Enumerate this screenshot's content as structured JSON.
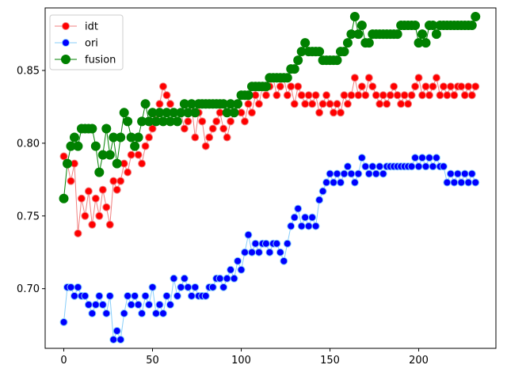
{
  "chart_data": {
    "type": "line",
    "title": "",
    "xlabel": "",
    "ylabel": "",
    "xlim": [
      -10.5,
      243.5
    ],
    "ylim": [
      0.659,
      0.893
    ],
    "xticks": [
      0,
      50,
      100,
      150,
      200
    ],
    "yticks": [
      0.7,
      0.75,
      0.8,
      0.85
    ],
    "xtick_labels": [
      "0",
      "50",
      "100",
      "150",
      "200"
    ],
    "ytick_labels": [
      "0.70",
      "0.75",
      "0.80",
      "0.85"
    ],
    "legend_position": "top-left",
    "grid": false,
    "series": [
      {
        "name": "idt",
        "color": "#ff0000",
        "line_color": "#f08080",
        "edge_color": "#f08080",
        "marker_size": 9,
        "x": [
          0,
          2,
          4,
          6,
          8,
          10,
          12,
          14,
          16,
          18,
          20,
          22,
          24,
          26,
          28,
          30,
          32,
          34,
          36,
          38,
          40,
          42,
          44,
          46,
          48,
          50,
          52,
          54,
          56,
          58,
          60,
          62,
          64,
          66,
          68,
          70,
          72,
          74,
          76,
          78,
          80,
          82,
          84,
          86,
          88,
          90,
          92,
          94,
          96,
          98,
          100,
          102,
          104,
          106,
          108,
          110,
          112,
          114,
          116,
          118,
          120,
          122,
          124,
          126,
          128,
          130,
          132,
          134,
          136,
          138,
          140,
          142,
          144,
          146,
          148,
          150,
          152,
          154,
          156,
          158,
          160,
          162,
          164,
          166,
          168,
          170,
          172,
          174,
          176,
          178,
          180,
          182,
          184,
          186,
          188,
          190,
          192,
          194,
          196,
          198,
          200,
          202,
          204,
          206,
          208,
          210,
          212,
          214,
          216,
          218,
          220,
          222,
          224,
          226,
          228,
          230,
          232
        ],
        "y": [
          0.791,
          0.786,
          0.774,
          0.786,
          0.738,
          0.762,
          0.75,
          0.767,
          0.744,
          0.762,
          0.75,
          0.768,
          0.756,
          0.744,
          0.774,
          0.768,
          0.774,
          0.786,
          0.78,
          0.792,
          0.798,
          0.792,
          0.786,
          0.798,
          0.804,
          0.81,
          0.816,
          0.827,
          0.839,
          0.833,
          0.827,
          0.821,
          0.815,
          0.821,
          0.81,
          0.815,
          0.827,
          0.804,
          0.821,
          0.815,
          0.798,
          0.804,
          0.81,
          0.815,
          0.821,
          0.81,
          0.804,
          0.815,
          0.821,
          0.827,
          0.821,
          0.815,
          0.827,
          0.821,
          0.833,
          0.827,
          0.839,
          0.833,
          0.839,
          0.845,
          0.833,
          0.839,
          0.845,
          0.833,
          0.839,
          0.827,
          0.839,
          0.833,
          0.827,
          0.833,
          0.827,
          0.833,
          0.821,
          0.827,
          0.833,
          0.827,
          0.821,
          0.827,
          0.821,
          0.833,
          0.827,
          0.833,
          0.845,
          0.833,
          0.839,
          0.833,
          0.845,
          0.839,
          0.833,
          0.827,
          0.833,
          0.827,
          0.833,
          0.839,
          0.833,
          0.827,
          0.833,
          0.827,
          0.833,
          0.839,
          0.845,
          0.833,
          0.839,
          0.833,
          0.839,
          0.845,
          0.833,
          0.839,
          0.833,
          0.839,
          0.833,
          0.839,
          0.839,
          0.833,
          0.839,
          0.833,
          0.839
        ]
      },
      {
        "name": "ori",
        "color": "#0000ff",
        "line_color": "#87cefa",
        "edge_color": "#87cefa",
        "marker_size": 9,
        "x": [
          0,
          2,
          4,
          6,
          8,
          10,
          12,
          14,
          16,
          18,
          20,
          22,
          24,
          26,
          28,
          30,
          32,
          34,
          36,
          38,
          40,
          42,
          44,
          46,
          48,
          50,
          52,
          54,
          56,
          58,
          60,
          62,
          64,
          66,
          68,
          70,
          72,
          74,
          76,
          78,
          80,
          82,
          84,
          86,
          88,
          90,
          92,
          94,
          96,
          98,
          100,
          102,
          104,
          106,
          108,
          110,
          112,
          114,
          116,
          118,
          120,
          122,
          124,
          126,
          128,
          130,
          132,
          134,
          136,
          138,
          140,
          142,
          144,
          146,
          148,
          150,
          152,
          154,
          156,
          158,
          160,
          162,
          164,
          166,
          168,
          170,
          172,
          174,
          176,
          178,
          180,
          182,
          184,
          186,
          188,
          190,
          192,
          194,
          196,
          198,
          200,
          202,
          204,
          206,
          208,
          210,
          212,
          214,
          216,
          218,
          220,
          222,
          224,
          226,
          228,
          230,
          232
        ],
        "y": [
          0.677,
          0.701,
          0.701,
          0.695,
          0.701,
          0.695,
          0.695,
          0.689,
          0.683,
          0.689,
          0.695,
          0.689,
          0.683,
          0.695,
          0.665,
          0.671,
          0.665,
          0.683,
          0.695,
          0.689,
          0.695,
          0.689,
          0.683,
          0.695,
          0.689,
          0.701,
          0.683,
          0.689,
          0.683,
          0.695,
          0.689,
          0.707,
          0.695,
          0.701,
          0.707,
          0.701,
          0.695,
          0.701,
          0.695,
          0.695,
          0.695,
          0.701,
          0.701,
          0.707,
          0.707,
          0.701,
          0.707,
          0.713,
          0.707,
          0.719,
          0.713,
          0.725,
          0.737,
          0.725,
          0.731,
          0.725,
          0.731,
          0.731,
          0.725,
          0.731,
          0.731,
          0.725,
          0.719,
          0.731,
          0.743,
          0.749,
          0.755,
          0.743,
          0.749,
          0.743,
          0.749,
          0.743,
          0.761,
          0.767,
          0.773,
          0.779,
          0.773,
          0.779,
          0.773,
          0.779,
          0.784,
          0.779,
          0.773,
          0.779,
          0.79,
          0.784,
          0.779,
          0.784,
          0.779,
          0.784,
          0.779,
          0.784,
          0.784,
          0.784,
          0.784,
          0.784,
          0.784,
          0.784,
          0.784,
          0.79,
          0.784,
          0.79,
          0.784,
          0.79,
          0.784,
          0.79,
          0.784,
          0.784,
          0.773,
          0.779,
          0.773,
          0.779,
          0.773,
          0.779,
          0.773,
          0.779,
          0.773
        ]
      },
      {
        "name": "fusion",
        "color": "#008000",
        "line_color": "#008000",
        "edge_color": "#008000",
        "marker_size": 11,
        "x": [
          0,
          2,
          4,
          6,
          8,
          10,
          12,
          14,
          16,
          18,
          20,
          22,
          24,
          26,
          28,
          30,
          32,
          34,
          36,
          38,
          40,
          42,
          44,
          46,
          48,
          50,
          52,
          54,
          56,
          58,
          60,
          62,
          64,
          66,
          68,
          70,
          72,
          74,
          76,
          78,
          80,
          82,
          84,
          86,
          88,
          90,
          92,
          94,
          96,
          98,
          100,
          102,
          104,
          106,
          108,
          110,
          112,
          114,
          116,
          118,
          120,
          122,
          124,
          126,
          128,
          130,
          132,
          134,
          136,
          138,
          140,
          142,
          144,
          146,
          148,
          150,
          152,
          154,
          156,
          158,
          160,
          162,
          164,
          166,
          168,
          170,
          172,
          174,
          176,
          178,
          180,
          182,
          184,
          186,
          188,
          190,
          192,
          194,
          196,
          198,
          200,
          202,
          204,
          206,
          208,
          210,
          212,
          214,
          216,
          218,
          220,
          222,
          224,
          226,
          228,
          230,
          232
        ],
        "y": [
          0.762,
          0.786,
          0.798,
          0.804,
          0.798,
          0.81,
          0.81,
          0.81,
          0.81,
          0.798,
          0.78,
          0.792,
          0.81,
          0.792,
          0.804,
          0.786,
          0.804,
          0.821,
          0.815,
          0.804,
          0.798,
          0.804,
          0.815,
          0.827,
          0.815,
          0.821,
          0.815,
          0.821,
          0.815,
          0.821,
          0.815,
          0.821,
          0.815,
          0.821,
          0.827,
          0.821,
          0.827,
          0.821,
          0.827,
          0.827,
          0.827,
          0.827,
          0.827,
          0.827,
          0.827,
          0.827,
          0.821,
          0.827,
          0.821,
          0.827,
          0.833,
          0.833,
          0.833,
          0.839,
          0.839,
          0.839,
          0.839,
          0.839,
          0.845,
          0.845,
          0.845,
          0.845,
          0.845,
          0.845,
          0.851,
          0.851,
          0.857,
          0.863,
          0.869,
          0.863,
          0.863,
          0.863,
          0.863,
          0.857,
          0.857,
          0.857,
          0.857,
          0.857,
          0.863,
          0.863,
          0.869,
          0.875,
          0.887,
          0.875,
          0.881,
          0.869,
          0.869,
          0.875,
          0.875,
          0.875,
          0.875,
          0.875,
          0.875,
          0.875,
          0.875,
          0.881,
          0.881,
          0.881,
          0.881,
          0.881,
          0.869,
          0.875,
          0.869,
          0.881,
          0.881,
          0.875,
          0.881,
          0.881,
          0.881,
          0.881,
          0.881,
          0.881,
          0.881,
          0.881,
          0.881,
          0.881,
          0.887
        ]
      }
    ]
  }
}
